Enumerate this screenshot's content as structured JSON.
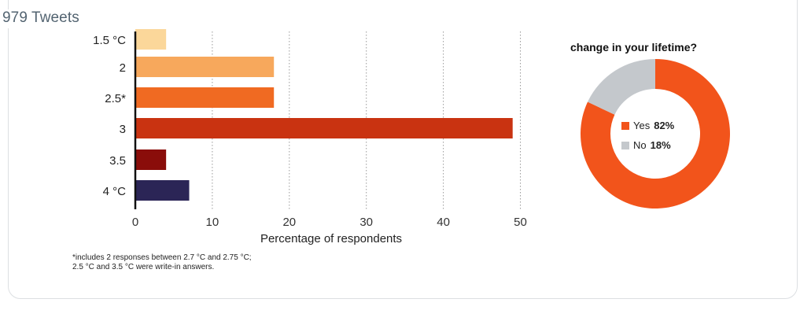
{
  "tweet_count": "979 Tweets",
  "footnote": {
    "line1": "*includes 2 responses between 2.7 °C and 2.75 °C;",
    "line2": "2.5 °C and 3.5 °C were write-in answers."
  },
  "colors": {
    "bar_1_5": "#fbd79a",
    "bar_2": "#f7a85c",
    "bar_2_5": "#f06a22",
    "bar_3": "#c93311",
    "bar_3_5": "#8a0d0a",
    "bar_4": "#2b2556",
    "yes": "#f2541b",
    "no": "#c4c8cc"
  },
  "chart_data": [
    {
      "type": "bar",
      "orientation": "horizontal",
      "categories": [
        "1.5 °C",
        "2",
        "2.5*",
        "3",
        "3.5",
        "4 °C"
      ],
      "values": [
        4,
        18,
        18,
        49,
        4,
        7
      ],
      "xlabel": "Percentage of respondents",
      "ylabel": "",
      "xlim": [
        0,
        50
      ],
      "xticks": [
        0,
        10,
        20,
        30,
        40,
        50
      ],
      "grid": "vertical dotted"
    },
    {
      "type": "pie",
      "title": "change in your lifetime?",
      "labels": [
        "Yes",
        "No"
      ],
      "values": [
        82,
        18
      ],
      "value_labels": [
        "82%",
        "18%"
      ]
    }
  ]
}
